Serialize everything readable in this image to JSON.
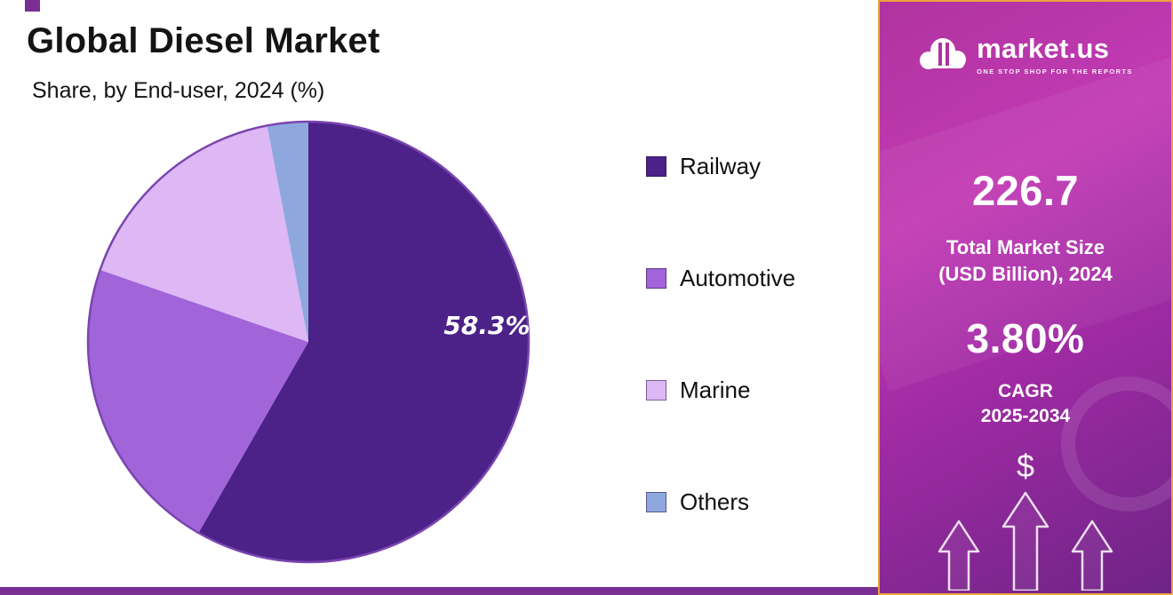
{
  "page": {
    "title": "Global Diesel Market",
    "subtitle": "Share, by End-user, 2024 (%)"
  },
  "chart_data": {
    "type": "pie",
    "title": "Global Diesel Market",
    "subtitle": "Share, by End-user, 2024 (%)",
    "unit": "%",
    "start_angle_deg": 0,
    "direction": "clockwise",
    "legend_position": "right",
    "outline_color": "#7a45b0",
    "segments": [
      {
        "label": "Railway",
        "value": 58.3,
        "color": "#4c2188",
        "display_label": "58.3%"
      },
      {
        "label": "Automotive",
        "value": 22.0,
        "color": "#a164d9"
      },
      {
        "label": "Marine",
        "value": 16.7,
        "color": "#ddb8f5"
      },
      {
        "label": "Others",
        "value": 3.0,
        "color": "#8ea8de"
      }
    ]
  },
  "sidebar": {
    "logo": {
      "text": "market.us",
      "tagline": "ONE STOP SHOP FOR THE REPORTS"
    },
    "market_size_value": "226.7",
    "market_size_label_line1": "Total Market Size",
    "market_size_label_line2": "(USD Billion), 2024",
    "cagr_value": "3.80%",
    "cagr_label_line1": "CAGR",
    "cagr_label_line2": "2025-2034",
    "currency_symbol": "$"
  },
  "colors": {
    "accent_orange": "#eda23f",
    "strip_purple": "#7b2e94",
    "panel_gradient_top": "#b0339f",
    "panel_gradient_mid": "#c23ab4",
    "panel_gradient_bottom": "#6e2387",
    "title_text": "#141414"
  }
}
